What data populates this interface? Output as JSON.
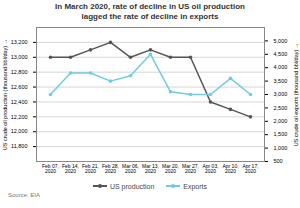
{
  "chart_data": {
    "type": "line",
    "title": "In March 2020, rate of decline in US oil production\nlagged the rate of decline in exports",
    "categories": [
      "Feb 07,\n2020",
      "Feb 14,\n2020",
      "Feb 21,\n2020",
      "Feb 28,\n2020",
      "Mar 06,\n2020",
      "Mar 13,\n2020",
      "Mar 20,\n2020",
      "Mar 27,\n2020",
      "Apr 03,\n2020",
      "Apr 10,\n2020",
      "Apr 17,\n2020"
    ],
    "series": [
      {
        "name": "US production",
        "color": "#555555",
        "marker": "circle",
        "axis": "y",
        "values": [
          13000,
          13000,
          13100,
          13200,
          13000,
          13100,
          13000,
          13000,
          12400,
          12300,
          12200
        ]
      },
      {
        "name": "Exports",
        "color": "#70cce0",
        "marker": "circle",
        "axis": "y2",
        "values": [
          3000,
          3800,
          3800,
          3500,
          3700,
          4500,
          3100,
          3000,
          3000,
          3600,
          3000
        ]
      }
    ],
    "ylabel": "US crude oil production (thousand bbl/day)",
    "y2label": "US crude oil exports (thousand bbl/day)",
    "ylim": [
      11600,
      13400
    ],
    "yticks": [
      {
        "value": 11800,
        "label": "11,800"
      },
      {
        "value": 12000,
        "label": "12,000"
      },
      {
        "value": 12200,
        "label": "12,200"
      },
      {
        "value": 12400,
        "label": "12,400"
      },
      {
        "value": 12600,
        "label": "12,600"
      },
      {
        "value": 12800,
        "label": "12,800"
      },
      {
        "value": 13000,
        "label": "13,000"
      },
      {
        "value": 13200,
        "label": "13,200"
      }
    ],
    "y2lim": [
      500,
      5500
    ],
    "y2ticks": [
      500,
      {
        "value": 1000,
        "label": "1,000"
      },
      {
        "value": 1500,
        "label": "1,500"
      },
      {
        "value": 2000,
        "label": "2,000"
      },
      {
        "value": 2500,
        "label": "2,500"
      },
      {
        "value": 3000,
        "label": "3,000"
      },
      {
        "value": 3500,
        "label": "3,500"
      },
      {
        "value": 4000,
        "label": "4,000"
      },
      {
        "value": 4500,
        "label": "4,500"
      },
      {
        "value": 5000,
        "label": "5,000"
      }
    ],
    "grid": true,
    "legend": "bottom",
    "source": "Source: EIA"
  }
}
